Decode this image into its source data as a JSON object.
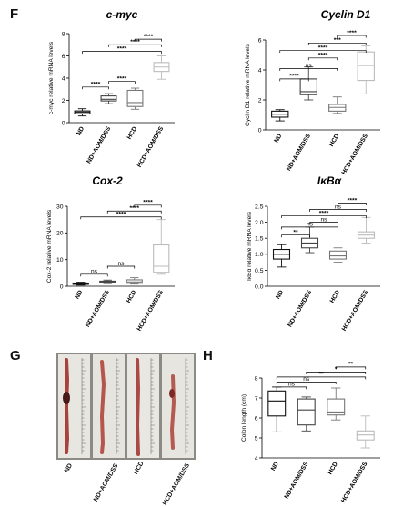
{
  "panels": {
    "F": "F",
    "G": "G",
    "H": "H"
  },
  "photo": {
    "labels": [
      "ND",
      "ND+AOM/DSS",
      "HCD",
      "HCD+AOM/DSS"
    ]
  },
  "colors": {
    "black": "#111111",
    "dark": "#444444",
    "grey": "#777777",
    "light": "#bbbbbb"
  },
  "chart_data": [
    {
      "id": "cmyc",
      "type": "box",
      "title": "c-myc",
      "ylabel": "c-myc relative mRNA levels",
      "ylim": [
        0,
        8
      ],
      "yticks": [
        0,
        2,
        4,
        6,
        8
      ],
      "categories": [
        "ND",
        "ND+AOM/DSS",
        "HCD",
        "HCD+AOM/DSS"
      ],
      "boxes": [
        {
          "min": 0.6,
          "q1": 0.8,
          "median": 0.95,
          "q3": 1.05,
          "max": 1.25
        },
        {
          "min": 1.7,
          "q1": 1.95,
          "median": 2.1,
          "q3": 2.4,
          "max": 2.6
        },
        {
          "min": 1.2,
          "q1": 1.45,
          "median": 1.8,
          "q3": 2.9,
          "max": 3.1
        },
        {
          "min": 3.9,
          "q1": 4.6,
          "median": 5.0,
          "q3": 5.4,
          "max": 6.0
        }
      ],
      "brackets": [
        {
          "from": 0,
          "to": 1,
          "y": 3.2,
          "label": "****"
        },
        {
          "from": 1,
          "to": 2,
          "y": 3.7,
          "label": "****"
        },
        {
          "from": 0,
          "to": 3,
          "y": 6.4,
          "label": "****"
        },
        {
          "from": 1,
          "to": 3,
          "y": 7.0,
          "label": "****"
        },
        {
          "from": 2,
          "to": 3,
          "y": 7.5,
          "label": "****"
        }
      ]
    },
    {
      "id": "cyclind1",
      "type": "box",
      "title": "Cyclin D1",
      "ylabel": "Cyclin D1 relative mRNA levels",
      "ylim": [
        0,
        6
      ],
      "yticks": [
        0,
        2,
        4,
        6
      ],
      "categories": [
        "ND",
        "ND+AOM/DSS",
        "HCD",
        "HCD+AOM/DSS"
      ],
      "boxes": [
        {
          "min": 0.6,
          "q1": 0.85,
          "median": 1.05,
          "q3": 1.25,
          "max": 1.35
        },
        {
          "min": 2.0,
          "q1": 2.35,
          "median": 2.55,
          "q3": 3.4,
          "max": 4.2
        },
        {
          "min": 1.1,
          "q1": 1.25,
          "median": 1.5,
          "q3": 1.7,
          "max": 2.2
        },
        {
          "min": 2.4,
          "q1": 3.3,
          "median": 4.3,
          "q3": 5.2,
          "max": 5.6
        }
      ],
      "brackets": [
        {
          "from": 0,
          "to": 1,
          "y": 3.4,
          "label": "****"
        },
        {
          "from": 1,
          "to": 2,
          "y": 4.8,
          "label": "****"
        },
        {
          "from": 0,
          "to": 2,
          "y": 4.1,
          "label": "ns"
        },
        {
          "from": 0,
          "to": 3,
          "y": 5.3,
          "label": "****"
        },
        {
          "from": 1,
          "to": 3,
          "y": 5.8,
          "label": "***"
        },
        {
          "from": 2,
          "to": 3,
          "y": 6.3,
          "label": "****"
        }
      ]
    },
    {
      "id": "cox2",
      "type": "box",
      "title": "Cox-2",
      "ylabel": "Cox-2 relative mRNA levels",
      "ylim": [
        0,
        30
      ],
      "yticks": [
        0,
        10,
        20,
        30
      ],
      "categories": [
        "ND",
        "ND+AOM/DSS",
        "HCD",
        "HCD+AOM/DSS"
      ],
      "boxes": [
        {
          "min": 0.4,
          "q1": 0.7,
          "median": 0.95,
          "q3": 1.2,
          "max": 1.5
        },
        {
          "min": 1.0,
          "q1": 1.3,
          "median": 1.6,
          "q3": 1.9,
          "max": 2.3
        },
        {
          "min": 0.8,
          "q1": 1.1,
          "median": 1.6,
          "q3": 2.4,
          "max": 3.2
        },
        {
          "min": 4.5,
          "q1": 5.2,
          "median": 7.5,
          "q3": 15.5,
          "max": 25.0
        }
      ],
      "brackets": [
        {
          "from": 0,
          "to": 1,
          "y": 4.5,
          "label": "ns"
        },
        {
          "from": 1,
          "to": 2,
          "y": 7.5,
          "label": "ns"
        },
        {
          "from": 0,
          "to": 3,
          "y": 26.0,
          "label": "****"
        },
        {
          "from": 1,
          "to": 3,
          "y": 28.2,
          "label": "****"
        },
        {
          "from": 2,
          "to": 3,
          "y": 30.4,
          "label": "****"
        }
      ]
    },
    {
      "id": "ikba",
      "type": "box",
      "title": "IκBα",
      "ylabel": "IκBα relative mRNA levels",
      "ylim": [
        0.0,
        2.5
      ],
      "yticks": [
        "0.0",
        "0.5",
        "1.0",
        "1.5",
        "2.0",
        "2.5"
      ],
      "categories": [
        "ND",
        "ND+AOM/DSS",
        "HCD",
        "HCD+AOM/DSS"
      ],
      "boxes": [
        {
          "min": 0.6,
          "q1": 0.85,
          "median": 1.0,
          "q3": 1.15,
          "max": 1.3
        },
        {
          "min": 1.05,
          "q1": 1.2,
          "median": 1.35,
          "q3": 1.5,
          "max": 1.85
        },
        {
          "min": 0.75,
          "q1": 0.85,
          "median": 0.95,
          "q3": 1.1,
          "max": 1.2
        },
        {
          "min": 1.35,
          "q1": 1.5,
          "median": 1.6,
          "q3": 1.7,
          "max": 2.15
        }
      ],
      "brackets": [
        {
          "from": 0,
          "to": 1,
          "y": 1.6,
          "label": "**"
        },
        {
          "from": 1,
          "to": 2,
          "y": 2.0,
          "label": "ns"
        },
        {
          "from": 0,
          "to": 2,
          "y": 1.85,
          "label": "ns"
        },
        {
          "from": 0,
          "to": 3,
          "y": 2.2,
          "label": "****"
        },
        {
          "from": 1,
          "to": 3,
          "y": 2.4,
          "label": "ns"
        },
        {
          "from": 2,
          "to": 3,
          "y": 2.6,
          "label": "****"
        }
      ]
    },
    {
      "id": "colon",
      "type": "box",
      "title": "",
      "ylabel": "Colon length (cm)",
      "ylim": [
        4,
        8
      ],
      "yticks": [
        4,
        5,
        6,
        7,
        8
      ],
      "categories": [
        "ND",
        "ND+AOM/DSS",
        "HCD",
        "HCD+AOM/DSS"
      ],
      "boxes": [
        {
          "min": 5.3,
          "q1": 6.1,
          "median": 6.85,
          "q3": 7.35,
          "max": 7.55
        },
        {
          "min": 5.35,
          "q1": 5.65,
          "median": 6.4,
          "q3": 6.95,
          "max": 7.05
        },
        {
          "min": 5.9,
          "q1": 6.15,
          "median": 6.3,
          "q3": 6.95,
          "max": 7.5
        },
        {
          "min": 4.5,
          "q1": 4.9,
          "median": 5.15,
          "q3": 5.35,
          "max": 6.1
        }
      ],
      "brackets": [
        {
          "from": 0,
          "to": 1,
          "y": 7.55,
          "label": "ns"
        },
        {
          "from": 0,
          "to": 2,
          "y": 7.8,
          "label": "ns"
        },
        {
          "from": 0,
          "to": 3,
          "y": 8.05,
          "label": "**"
        },
        {
          "from": 1,
          "to": 3,
          "y": 8.3,
          "label": "*"
        },
        {
          "from": 2,
          "to": 3,
          "y": 8.55,
          "label": "**"
        }
      ]
    }
  ]
}
